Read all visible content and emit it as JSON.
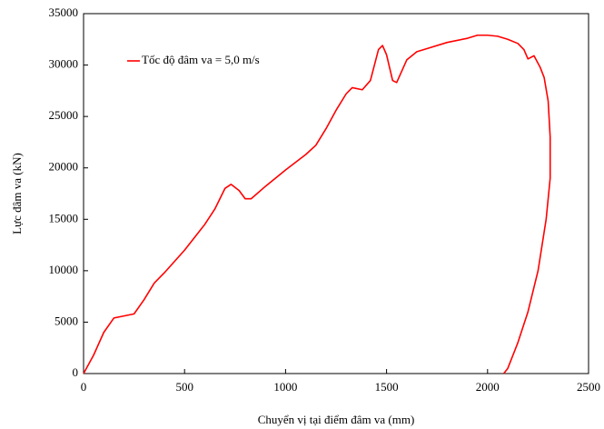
{
  "chart_data": {
    "type": "line",
    "xlabel": "Chuyển vị tại điểm đâm va (mm)",
    "ylabel": "Lực đâm va (kN)",
    "xlim": [
      0,
      2500
    ],
    "xticks": [
      0,
      500,
      1000,
      1500,
      2000,
      2500
    ],
    "ylim": [
      0,
      35000
    ],
    "yticks": [
      0,
      5000,
      10000,
      15000,
      20000,
      25000,
      30000,
      35000
    ],
    "grid": false,
    "legend": "upper left",
    "x": [
      0,
      50,
      100,
      150,
      200,
      250,
      300,
      350,
      400,
      500,
      600,
      650,
      700,
      730,
      770,
      800,
      830,
      900,
      1000,
      1100,
      1150,
      1200,
      1250,
      1300,
      1330,
      1380,
      1420,
      1460,
      1480,
      1500,
      1530,
      1550,
      1600,
      1650,
      1700,
      1800,
      1900,
      1950,
      2000,
      2050,
      2100,
      2150,
      2180,
      2200,
      2230,
      2260,
      2280,
      2300,
      2310,
      2310,
      2290,
      2250,
      2200,
      2150,
      2100,
      2080
    ],
    "series": [
      {
        "name": "Tốc độ đâm va = 5,0 m/s",
        "color": "#ff0000",
        "values": [
          0,
          1800,
          4000,
          5400,
          5600,
          5800,
          7200,
          8800,
          9800,
          12000,
          14500,
          16000,
          18000,
          18400,
          17800,
          17000,
          17000,
          18200,
          19800,
          21300,
          22200,
          23800,
          25600,
          27200,
          27800,
          27600,
          28500,
          31500,
          31900,
          31000,
          28500,
          28300,
          30500,
          31300,
          31600,
          32200,
          32600,
          32900,
          32900,
          32800,
          32500,
          32100,
          31500,
          30600,
          30900,
          29800,
          28800,
          26500,
          23000,
          19000,
          15000,
          10000,
          6000,
          3000,
          500,
          0
        ]
      }
    ]
  }
}
